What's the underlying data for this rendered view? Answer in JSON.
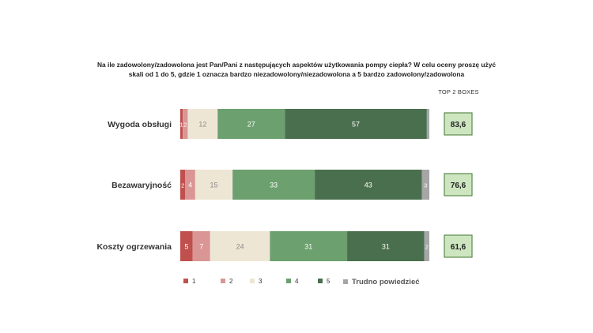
{
  "title": "Na ile zadowolony/zadowolona jest Pan/Pani z następujących aspektów użytkowania pompy ciepła? W celu oceny proszę użyć skali od 1 do 5, gdzie 1 oznacza bardzo niezadowolony/niezadowolona a 5 bardzo zadowolony/zadowolona",
  "top2_header": "TOP 2 BOXES",
  "colors": {
    "s1": "#c0504d",
    "s2": "#d99694",
    "s3": "#eee6d4",
    "s4": "#6ca06e",
    "s5": "#4a6f4e",
    "s6": "#a6a6a6",
    "top2_fill": "#cde6c0",
    "top2_border": "#5b8a4a"
  },
  "chart_data": {
    "type": "bar",
    "orientation": "horizontal",
    "stacked": true,
    "categories": [
      "Wygoda obsługi",
      "Bezawaryjność",
      "Koszty ogrzewania"
    ],
    "series": [
      {
        "name": "1",
        "values": [
          1,
          2,
          5
        ]
      },
      {
        "name": "2",
        "values": [
          2,
          4,
          7
        ]
      },
      {
        "name": "3",
        "values": [
          12,
          15,
          24
        ]
      },
      {
        "name": "4",
        "values": [
          27,
          33,
          31
        ]
      },
      {
        "name": "5",
        "values": [
          57,
          43,
          31
        ]
      },
      {
        "name": "Trudno powiedzieć",
        "values": [
          1,
          3,
          2
        ]
      }
    ],
    "data_labels": [
      [
        "1",
        "2",
        "12",
        "27",
        "57",
        ""
      ],
      [
        "2",
        "4",
        "15",
        "33",
        "43",
        "3"
      ],
      [
        "5",
        "7",
        "24",
        "31",
        "31",
        "2"
      ]
    ],
    "top2_boxes": [
      "83,6",
      "76,6",
      "61,6"
    ],
    "legend_position": "bottom",
    "grid": false
  }
}
